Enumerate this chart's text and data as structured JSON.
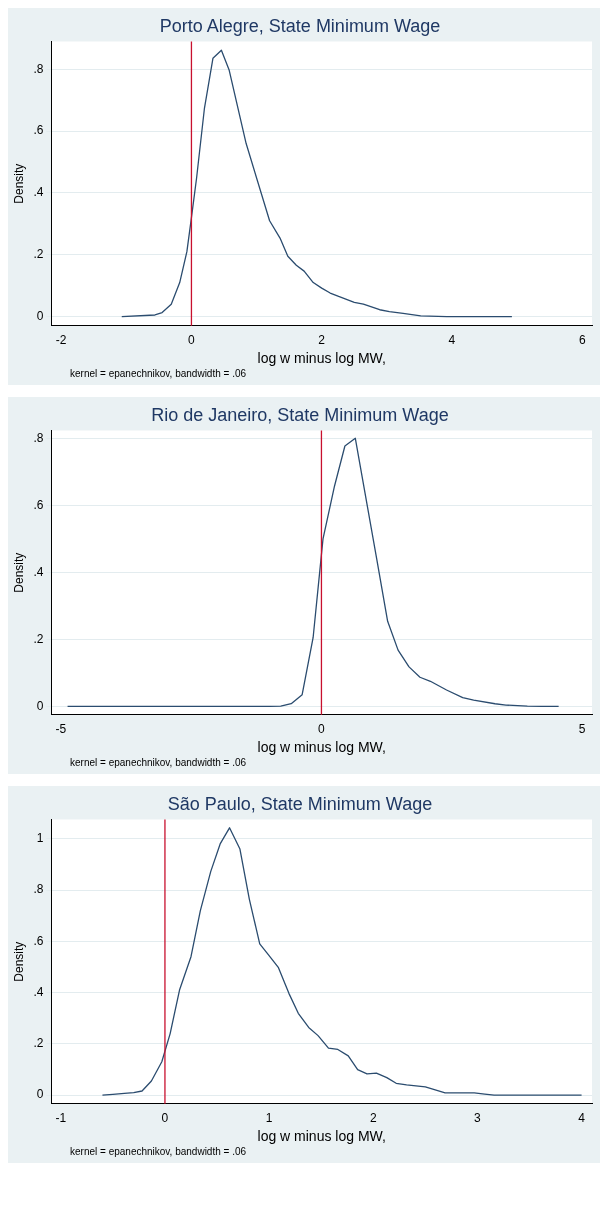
{
  "chart_data": [
    {
      "type": "line",
      "title": "Porto Alegre, State Minimum Wage",
      "xlabel": "log w minus log MW,",
      "ylabel": "Density",
      "annotations": [
        "kernel = epanechnikov, bandwidth = .06"
      ],
      "series": [
        {
          "color": "#2b4c6f",
          "x": [
            -1.07,
            -0.56,
            -0.45,
            -0.31,
            -0.18,
            -0.07,
            0,
            0.08,
            0.2,
            0.33,
            0.46,
            0.58,
            0.84,
            1.2,
            1.36,
            1.48,
            1.61,
            1.73,
            1.87,
            2.0,
            2.13,
            2.26,
            2.5,
            2.64,
            2.89,
            3.04,
            3.25,
            3.52,
            3.92,
            4.92
          ],
          "values": [
            0,
            0.005,
            0.013,
            0.04,
            0.11,
            0.21,
            0.32,
            0.45,
            0.675,
            0.836,
            0.862,
            0.797,
            0.56,
            0.31,
            0.254,
            0.195,
            0.166,
            0.147,
            0.11,
            0.092,
            0.076,
            0.065,
            0.046,
            0.04,
            0.022,
            0.016,
            0.01,
            0.002,
            0,
            0
          ]
        }
      ],
      "xlim": [
        -2.15,
        6.15
      ],
      "ylim": [
        -0.03,
        0.89
      ],
      "xticks": [
        -2,
        0,
        2,
        4,
        6
      ],
      "yticks": [
        {
          "value": 0,
          "label": "0"
        },
        {
          "value": 0.2,
          "label": ".2"
        },
        {
          "value": 0.4,
          "label": ".4"
        },
        {
          "value": 0.6,
          "label": ".6"
        },
        {
          "value": 0.8,
          "label": ".8"
        }
      ],
      "ref_lines": [
        {
          "axis": "x",
          "value": 0,
          "color": "#c8102e"
        }
      ],
      "grid": "y",
      "legend": false
    },
    {
      "type": "line",
      "title": "Rio de Janeiro, State Minimum Wage",
      "xlabel": "log w minus log MW,",
      "ylabel": "Density",
      "annotations": [
        "kernel = epanechnikov, bandwidth = .06"
      ],
      "series": [
        {
          "color": "#2b4c6f",
          "x": [
            -4.87,
            -0.99,
            -0.78,
            -0.58,
            -0.37,
            -0.16,
            0.03,
            0.25,
            0.45,
            0.65,
            1.06,
            1.27,
            1.47,
            1.68,
            1.89,
            2.09,
            2.4,
            2.71,
            2.92,
            3.33,
            3.54,
            3.95,
            4.24,
            4.55
          ],
          "values": [
            0,
            0,
            0.001,
            0.008,
            0.035,
            0.205,
            0.5,
            0.657,
            0.777,
            0.8,
            0.44,
            0.254,
            0.168,
            0.118,
            0.087,
            0.075,
            0.049,
            0.026,
            0.019,
            0.008,
            0.004,
            0.001,
            0,
            0
          ]
        }
      ],
      "xlim": [
        -5.18,
        5.19
      ],
      "ylim": [
        -0.025,
        0.823
      ],
      "xticks": [
        -5,
        0,
        5
      ],
      "yticks": [
        {
          "value": 0,
          "label": "0"
        },
        {
          "value": 0.2,
          "label": ".2"
        },
        {
          "value": 0.4,
          "label": ".4"
        },
        {
          "value": 0.6,
          "label": ".6"
        },
        {
          "value": 0.8,
          "label": ".8"
        }
      ],
      "ref_lines": [
        {
          "axis": "x",
          "value": 0,
          "color": "#c8102e"
        }
      ],
      "grid": "y",
      "legend": false
    },
    {
      "type": "line",
      "title": "São Paulo, State Minimum Wage",
      "xlabel": "log w minus log MW,",
      "ylabel": "Density",
      "annotations": [
        "kernel = epanechnikov, bandwidth = .06"
      ],
      "series": [
        {
          "color": "#2b4c6f",
          "x": [
            -0.6,
            -0.5,
            -0.39,
            -0.3,
            -0.22,
            -0.13,
            -0.03,
            0.05,
            0.14,
            0.25,
            0.34,
            0.44,
            0.53,
            0.62,
            0.72,
            0.81,
            0.91,
            1.0,
            1.09,
            1.19,
            1.28,
            1.38,
            1.47,
            1.57,
            1.66,
            1.76,
            1.85,
            1.94,
            2.03,
            2.13,
            2.22,
            2.32,
            2.5,
            2.69,
            2.97,
            3.07,
            3.16,
            4.0
          ],
          "values": [
            0,
            0.003,
            0.007,
            0.01,
            0.016,
            0.055,
            0.13,
            0.24,
            0.41,
            0.54,
            0.72,
            0.873,
            0.98,
            1.043,
            0.96,
            0.765,
            0.59,
            0.544,
            0.497,
            0.397,
            0.319,
            0.264,
            0.232,
            0.183,
            0.178,
            0.153,
            0.099,
            0.083,
            0.086,
            0.068,
            0.046,
            0.04,
            0.032,
            0.009,
            0.009,
            0.004,
            0,
            0
          ]
        }
      ],
      "xlim": [
        -1.09,
        4.1
      ],
      "ylim": [
        -0.034,
        1.075
      ],
      "xticks": [
        -1,
        0,
        1,
        2,
        3,
        4
      ],
      "yticks": [
        {
          "value": 0,
          "label": "0"
        },
        {
          "value": 0.2,
          "label": ".2"
        },
        {
          "value": 0.4,
          "label": ".4"
        },
        {
          "value": 0.6,
          "label": ".6"
        },
        {
          "value": 0.8,
          "label": ".8"
        },
        {
          "value": 1,
          "label": "1"
        }
      ],
      "ref_lines": [
        {
          "axis": "x",
          "value": 0,
          "color": "#c8102e"
        }
      ],
      "grid": "y",
      "legend": false
    }
  ]
}
